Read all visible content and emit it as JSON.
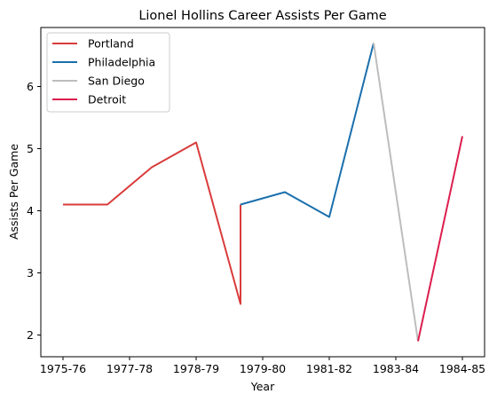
{
  "chart_data": {
    "type": "line",
    "title": "Lionel Hollins Career Assists Per Game",
    "xlabel": "Year",
    "ylabel": "Assists Per Game",
    "x_tick_labels": [
      "1975-76",
      "1977-78",
      "1978-79",
      "1979-80",
      "1981-82",
      "1983-84",
      "1984-85"
    ],
    "x_tick_positions": [
      0,
      1.5,
      3,
      4.5,
      6,
      7.5,
      9
    ],
    "xlim": [
      -0.5,
      9.5
    ],
    "ylim": [
      1.65,
      6.95
    ],
    "y_ticks": [
      2,
      3,
      4,
      5,
      6
    ],
    "grid": false,
    "legend_position": "top-left",
    "series": [
      {
        "name": "Portland",
        "color": "#d93b3b",
        "x": [
          0,
          1,
          2,
          3,
          4,
          4
        ],
        "y": [
          4.1,
          4.1,
          4.7,
          5.1,
          2.5,
          4.1
        ]
      },
      {
        "name": "Philadelphia",
        "color": "#1a6fad",
        "x": [
          4,
          5,
          6,
          7
        ],
        "y": [
          4.1,
          4.3,
          3.9,
          6.7
        ]
      },
      {
        "name": "San Diego",
        "color": "#bdbdbd",
        "x": [
          7,
          8
        ],
        "y": [
          6.7,
          1.9
        ]
      },
      {
        "name": "Detroit",
        "color": "#dc1e4e",
        "x": [
          8,
          9
        ],
        "y": [
          1.9,
          5.2
        ]
      }
    ]
  }
}
